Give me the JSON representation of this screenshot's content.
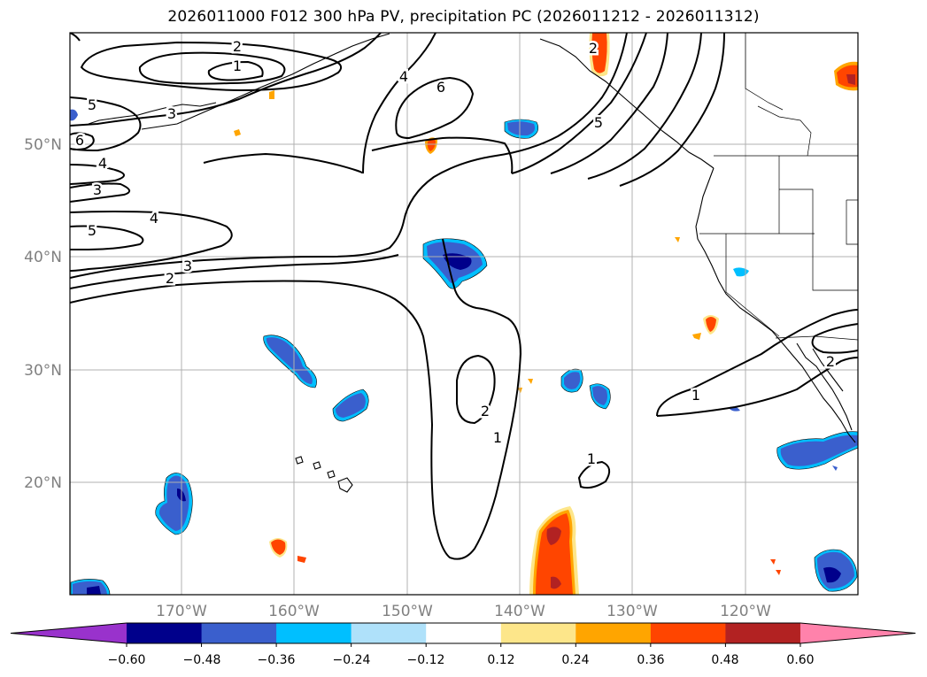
{
  "title": "2026011000 F012 300 hPa PV, precipitation PC (2026011212 - 2026011312)",
  "map": {
    "lat_labels": [
      "50°N",
      "40°N",
      "30°N",
      "20°N"
    ],
    "lon_labels": [
      "170°W",
      "160°W",
      "150°W",
      "140°W",
      "130°W",
      "120°W"
    ],
    "contour_labels": [
      "2",
      "1",
      "4",
      "6",
      "3",
      "5",
      "6",
      "4",
      "3",
      "4",
      "5",
      "3",
      "2",
      "5",
      "2",
      "1",
      "2",
      "1",
      "1",
      "2"
    ]
  },
  "colorbar": {
    "ticks": [
      "−0.60",
      "−0.48",
      "−0.36",
      "−0.24",
      "−0.12",
      "0.12",
      "0.24",
      "0.36",
      "0.48",
      "0.60"
    ],
    "colors": [
      "#9932cc",
      "#00008b",
      "#3a5fcd",
      "#00bfff",
      "#afe1fa",
      "#ffffff",
      "#fde68a",
      "#ffa500",
      "#ff4500",
      "#b22222",
      "#ff82ab"
    ]
  },
  "colors": {
    "contour": "#000000",
    "grid": "#b0b0b0",
    "axis_label": "#808080"
  }
}
